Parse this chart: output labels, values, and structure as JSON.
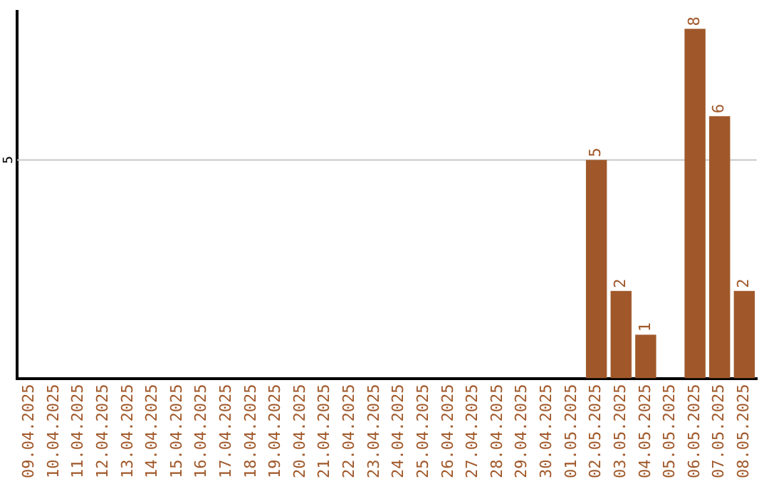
{
  "chart_data": {
    "type": "bar",
    "categories": [
      "09.04.2025",
      "10.04.2025",
      "11.04.2025",
      "12.04.2025",
      "13.04.2025",
      "14.04.2025",
      "15.04.2025",
      "16.04.2025",
      "17.04.2025",
      "18.04.2025",
      "19.04.2025",
      "20.04.2025",
      "21.04.2025",
      "22.04.2025",
      "23.04.2025",
      "24.04.2025",
      "25.04.2025",
      "26.04.2025",
      "27.04.2025",
      "28.04.2025",
      "29.04.2025",
      "30.04.2025",
      "01.05.2025",
      "02.05.2025",
      "03.05.2025",
      "04.05.2025",
      "05.05.2025",
      "06.05.2025",
      "07.05.2025",
      "08.05.2025"
    ],
    "values": [
      null,
      null,
      null,
      null,
      null,
      null,
      null,
      null,
      null,
      null,
      null,
      null,
      null,
      null,
      null,
      null,
      null,
      null,
      null,
      null,
      null,
      null,
      null,
      5,
      2,
      1,
      null,
      8,
      6,
      2
    ],
    "value_labels": [
      null,
      null,
      null,
      null,
      null,
      null,
      null,
      null,
      null,
      null,
      null,
      null,
      null,
      null,
      null,
      null,
      null,
      null,
      null,
      null,
      null,
      null,
      null,
      "5",
      "2",
      "1",
      null,
      "8",
      "6",
      "2"
    ],
    "ylim": [
      0,
      8.4
    ],
    "ref_lines": [
      {
        "axis": "y",
        "value": 5,
        "label": "5",
        "color": "#c8c8c8"
      }
    ],
    "color": "#a0582a",
    "legend": false
  }
}
